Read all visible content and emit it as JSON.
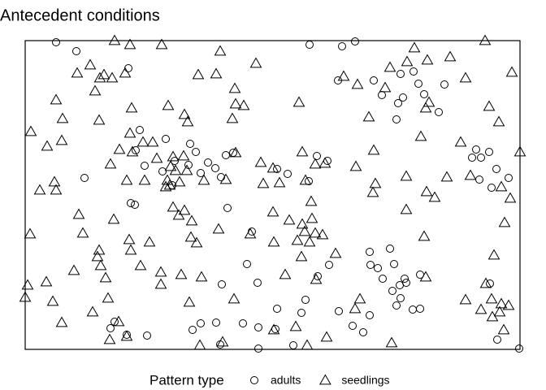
{
  "chart_data": {
    "type": "scatter",
    "title": "Antecedent conditions",
    "legend_title": "Pattern type",
    "xlim": [
      0,
      609
    ],
    "ylim": [
      0,
      380
    ],
    "series": [
      {
        "name": "adults",
        "marker": "circle",
        "color": "#000000",
        "x": [
          38,
          63,
          127,
          350,
          390,
          406,
          385,
          429,
          439,
          462,
          478,
          484,
          491,
          516,
          457,
          465,
          459,
          509,
          136,
          141,
          147,
          173,
          203,
          210,
          201,
          184,
          169,
          181,
          216,
          225,
          234,
          241,
          247,
          256,
          73,
          130,
          135,
          249,
          279,
          310,
          323,
          359,
          372,
          349,
          555,
          561,
          550,
          571,
          580,
          559,
          574,
          595,
          449,
          424,
          425,
          434,
          440,
          454,
          467,
          469,
          461,
          486,
          452,
          457,
          462,
          477,
          486,
          424,
          403,
          416,
          386,
          360,
          374,
          345,
          340,
          310,
          286,
          273,
          242,
          235,
          216,
          206,
          268,
          287,
          308,
          330,
          287,
          240,
          150,
          125,
          110,
          105,
          608,
          581,
          572
        ],
        "values": [
          378,
          367,
          346,
          375,
          373,
          379,
          331,
          331,
          313,
          339,
          342,
          327,
          314,
          326,
          283,
          310,
          303,
          292,
          245,
          270,
          226,
          259,
          253,
          243,
          227,
          232,
          219,
          202,
          217,
          230,
          223,
          212,
          239,
          242,
          211,
          180,
          178,
          174,
          145,
          222,
          216,
          238,
          232,
          207,
          246,
          236,
          236,
          243,
          222,
          209,
          199,
          211,
          124,
          120,
          104,
          100,
          87,
          105,
          87,
          82,
          79,
          92,
          72,
          54,
          63,
          49,
          50,
          42,
          29,
          21,
          47,
          90,
          104,
          61,
          45,
          50,
          82,
          105,
          80,
          33,
          32,
          24,
          32,
          27,
          25,
          5,
          1,
          6,
          17,
          18,
          34,
          26,
          1,
          12,
          81
        ]
      },
      {
        "name": "seedlings",
        "marker": "triangle",
        "color": "#000000",
        "x": [
          110,
          129,
          168,
          240,
          284,
          213,
          235,
          258,
          259,
          337,
          269,
          255,
          64,
          80,
          86,
          92,
          97,
          107,
          123,
          38,
          46,
          7,
          27,
          45,
          91,
          131,
          176,
          196,
          200,
          129,
          116,
          145,
          157,
          132,
          162,
          182,
          179,
          195,
          185,
          199,
          173,
          178,
          105,
          125,
          147,
          175,
          220,
          190,
          247,
          259,
          290,
          305,
          293,
          313,
          341,
          357,
          345,
          369,
          407,
          429,
          428,
          431,
          469,
          494,
          504,
          519,
          536,
          548,
          586,
          597,
          609,
          571,
          583,
          479,
          470,
          495,
          523,
          566,
          542,
          599,
          449,
          443,
          409,
          392,
          423,
          487,
          497,
          493,
          36,
          38,
          18,
          66,
          71,
          91,
          109,
          128,
          130,
          153,
          167,
          182,
          189,
          205,
          196,
          204,
          238,
          277,
          305,
          325,
          335,
          341,
          352,
          344,
          353,
          357,
          366,
          350,
          306,
          340,
          382,
          320,
          358,
          211,
          89,
          93,
          99,
          60,
          26,
          3,
          0,
          6,
          34,
          45,
          83,
          102,
          115,
          125,
          104,
          142,
          167,
          192,
          202,
          217,
          215,
          243,
          257,
          306,
          333,
          347,
          371,
          406,
          412,
          451,
          491,
          469,
          577,
          590,
          567,
          542,
          561,
          574,
          586,
          595,
          584,
          575,
          589,
          493
        ],
        "values": [
          380,
          375,
          375,
          367,
          352,
          338,
          339,
          321,
          302,
          304,
          300,
          284,
          340,
          350,
          318,
          334,
          338,
          334,
          340,
          307,
          284,
          268,
          250,
          257,
          282,
          297,
          300,
          289,
          280,
          266,
          246,
          255,
          255,
          243,
          235,
          237,
          225,
          238,
          220,
          220,
          200,
          202,
          228,
          208,
          208,
          208,
          208,
          206,
          209,
          242,
          230,
          223,
          204,
          205,
          243,
          228,
          208,
          229,
          225,
          245,
          193,
          204,
          213,
          194,
          187,
          212,
          255,
          214,
          200,
          186,
          243,
          299,
          280,
          371,
          354,
          356,
          360,
          380,
          334,
          341,
          347,
          322,
          326,
          336,
          286,
          262,
          304,
          297,
          206,
          196,
          196,
          166,
          143,
          122,
          160,
          135,
          122,
          132,
          95,
          175,
          165,
          158,
          171,
          138,
          148,
          142,
          169,
          159,
          134,
          154,
          182,
          145,
          161,
          143,
          141,
          132,
          132,
          114,
          118,
          92,
          86,
          131,
          114,
          103,
          88,
          97,
          83,
          79,
          64,
          142,
          59,
          33,
          46,
          63,
          34,
          16,
          12,
          103,
          80,
          92,
          58,
          89,
          5,
          9,
          62,
          24,
          28,
          5,
          15,
          50,
          62,
          8,
          139,
          172,
          116,
          156,
          81,
          61,
          49,
          62,
          56,
          54,
          46,
          40,
          24,
          89
        ]
      }
    ]
  }
}
